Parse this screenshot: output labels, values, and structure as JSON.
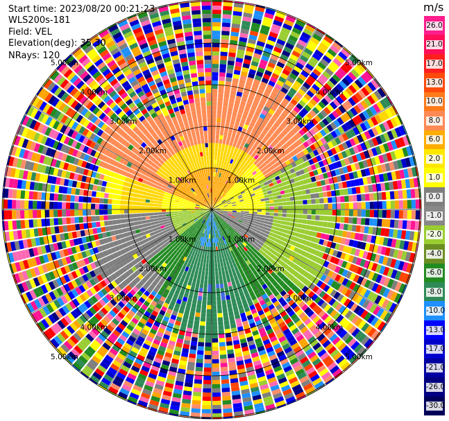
{
  "header": {
    "start_time": "Start time: 2023/08/20 00:21:23",
    "instrument": "WLS200s-181",
    "field": "Field: VEL",
    "elevation": "Elevation(deg): 35.30",
    "nrays": "NRays: 120"
  },
  "colorbar": {
    "unit": "m/s",
    "labels": [
      "26.0",
      "21.0",
      "17.0",
      "13.0",
      "10.0",
      "8.0",
      "6.0",
      "2.0",
      "1.0",
      "0.0",
      "-1.0",
      "-2.0",
      "-4.0",
      "-6.0",
      "-8.0",
      "-10.0",
      "-13.0",
      "-17.0",
      "-21.0",
      "-26.0",
      "-30.0"
    ],
    "colors": [
      "#ff1e8c",
      "#ff0f5a",
      "#ff1f1f",
      "#ff4a0a",
      "#ff7a1a",
      "#ff8a55",
      "#ffad00",
      "#ffe800",
      "#ffff00",
      "#7f7f7f",
      "#888888",
      "#9acd32",
      "#6b8e23",
      "#228b22",
      "#2e8b57",
      "#1e90ff",
      "#0000ff",
      "#0000cd",
      "#0000a0",
      "#000080",
      "#00005a"
    ]
  },
  "range_labels": [
    "1.00km",
    "2.00km",
    "3.00km",
    "4.00km",
    "5.00km"
  ],
  "scan": {
    "nrays": 120,
    "rings": 5
  }
}
